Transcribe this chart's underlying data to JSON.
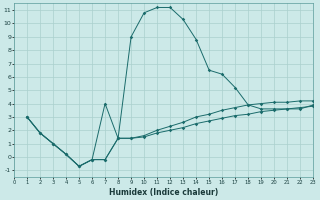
{
  "xlabel": "Humidex (Indice chaleur)",
  "bg_color": "#cce9e8",
  "grid_color": "#aad0ce",
  "line_color": "#1a6b6b",
  "xlim": [
    0,
    23
  ],
  "ylim": [
    -1.5,
    11.5
  ],
  "xtick_labels": [
    "0",
    "1",
    "2",
    "3",
    "4",
    "5",
    "6",
    "7",
    "8",
    "9",
    "10",
    "11",
    "12",
    "13",
    "14",
    "15",
    "16",
    "17",
    "18",
    "19",
    "20",
    "21",
    "22",
    "23"
  ],
  "ytick_labels": [
    "11",
    "10",
    "9",
    "8",
    "7",
    "6",
    "5",
    "4",
    "3",
    "2",
    "1",
    "0",
    "-1"
  ],
  "ytick_vals": [
    11,
    10,
    9,
    8,
    7,
    6,
    5,
    4,
    3,
    2,
    1,
    0,
    -1
  ],
  "xtick_vals": [
    0,
    1,
    2,
    3,
    4,
    5,
    6,
    7,
    8,
    9,
    10,
    11,
    12,
    13,
    14,
    15,
    16,
    17,
    18,
    19,
    20,
    21,
    22,
    23
  ],
  "series1_x": [
    1,
    2,
    3,
    4,
    5,
    6,
    7,
    8,
    9,
    10,
    11,
    12,
    13,
    14,
    15,
    16,
    17,
    18,
    19,
    20,
    21,
    22,
    23
  ],
  "series1_y": [
    3.0,
    1.8,
    1.0,
    0.2,
    -0.7,
    -0.2,
    4.0,
    1.4,
    9.0,
    10.8,
    11.2,
    11.2,
    10.3,
    8.8,
    6.5,
    6.2,
    5.2,
    3.9,
    3.6,
    3.6,
    3.6,
    3.6,
    3.9
  ],
  "series2_x": [
    1,
    2,
    3,
    4,
    5,
    6,
    7,
    8,
    9,
    10,
    11,
    12,
    13,
    14,
    15,
    16,
    17,
    18,
    19,
    20,
    21,
    22,
    23
  ],
  "series2_y": [
    3.0,
    1.8,
    1.0,
    0.2,
    -0.7,
    -0.2,
    -0.2,
    1.4,
    1.4,
    1.6,
    2.0,
    2.3,
    2.6,
    3.0,
    3.2,
    3.5,
    3.7,
    3.9,
    4.0,
    4.1,
    4.1,
    4.2,
    4.2
  ],
  "series3_x": [
    1,
    2,
    3,
    4,
    5,
    6,
    7,
    8,
    9,
    10,
    11,
    12,
    13,
    14,
    15,
    16,
    17,
    18,
    19,
    20,
    21,
    22,
    23
  ],
  "series3_y": [
    3.0,
    1.8,
    1.0,
    0.2,
    -0.7,
    -0.2,
    -0.2,
    1.4,
    1.4,
    1.5,
    1.8,
    2.0,
    2.2,
    2.5,
    2.7,
    2.9,
    3.1,
    3.2,
    3.4,
    3.5,
    3.6,
    3.7,
    3.8
  ]
}
